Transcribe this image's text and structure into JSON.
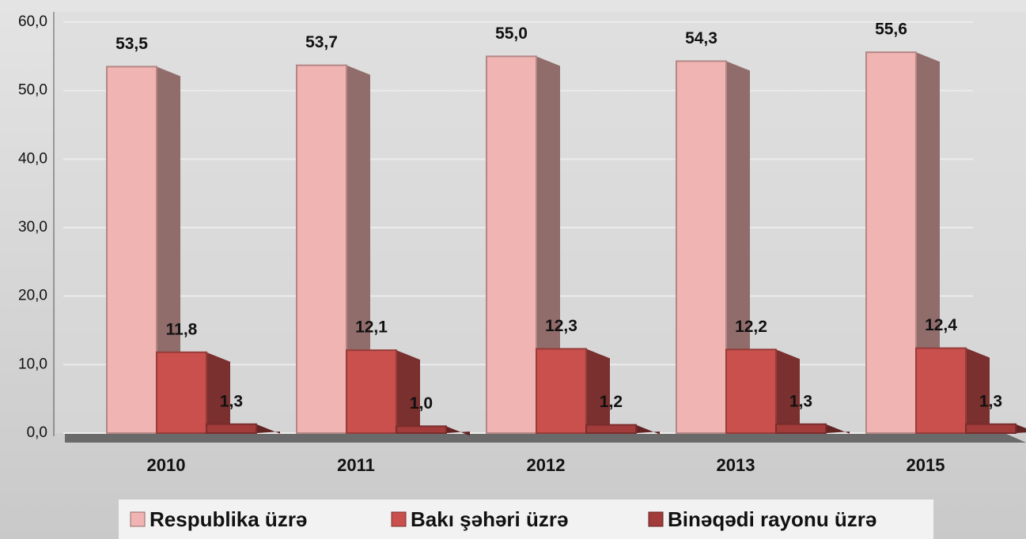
{
  "chart_data": {
    "type": "bar3d",
    "categories": [
      "2010",
      "2011",
      "2012",
      "2013",
      "2015"
    ],
    "series": [
      {
        "name": "Respublika üzrə",
        "color": "#f0b4b2",
        "values": [
          53.5,
          53.7,
          55.0,
          54.3,
          55.6
        ],
        "value_labels": [
          "53,5",
          "53,7",
          "55,0",
          "54,3",
          "55,6"
        ]
      },
      {
        "name": "Bakı şəhəri üzrə",
        "color": "#c9504c",
        "values": [
          11.8,
          12.1,
          12.3,
          12.2,
          12.4
        ],
        "value_labels": [
          "11,8",
          "12,1",
          "12,3",
          "12,2",
          "12,4"
        ]
      },
      {
        "name": "Binəqədi rayonu üzrə",
        "color": "#a23c3a",
        "values": [
          1.3,
          1.0,
          1.2,
          1.3,
          1.3
        ],
        "value_labels": [
          "1,3",
          "1,0",
          "1,2",
          "1,3",
          "1,3"
        ]
      }
    ],
    "ylim": [
      0,
      60
    ],
    "yticks": [
      {
        "value": 0,
        "label": "0,0"
      },
      {
        "value": 10,
        "label": "10,0"
      },
      {
        "value": 20,
        "label": "20,0"
      },
      {
        "value": 30,
        "label": "30,0"
      },
      {
        "value": 40,
        "label": "40,0"
      },
      {
        "value": 50,
        "label": "50,0"
      },
      {
        "value": 60,
        "label": "60,0"
      }
    ],
    "grid": true,
    "legend": "bottom"
  }
}
